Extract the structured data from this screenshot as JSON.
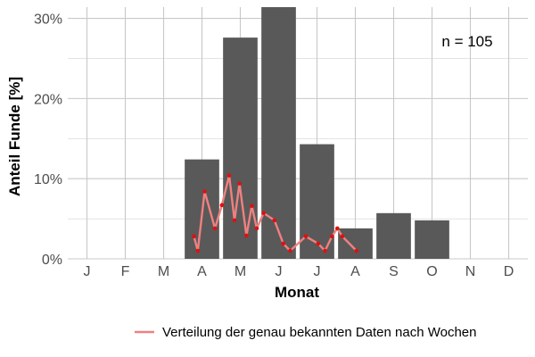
{
  "chart_data": {
    "type": "bar",
    "xlabel": "Monat",
    "ylabel": "Anteil Funde [%]",
    "categories": [
      "J",
      "F",
      "M",
      "A",
      "M",
      "J",
      "J",
      "A",
      "S",
      "O",
      "N",
      "D"
    ],
    "values": [
      0,
      0,
      0,
      12.4,
      27.6,
      31.4,
      14.3,
      3.8,
      5.7,
      4.8,
      0,
      0
    ],
    "ylim": [
      0,
      31.4
    ],
    "yticks": [
      0,
      10,
      20,
      30
    ],
    "ytick_labels": [
      "0%",
      "10%",
      "20%",
      "30%"
    ],
    "grid": true,
    "annotation": "n = 105",
    "legend_position": "bottom",
    "colors": {
      "bar": "#595959",
      "line": "#f08080",
      "point": "#dd1111",
      "grid": "#c8c8c8"
    },
    "line_series": {
      "name": "Verteilung der genau bekannten Daten nach Wochen",
      "x": [
        3.79,
        3.89,
        4.07,
        4.34,
        4.52,
        4.71,
        4.85,
        4.98,
        5.16,
        5.3,
        5.43,
        5.61,
        5.89,
        6.12,
        6.3,
        6.71,
        7.03,
        7.21,
        7.39,
        7.53,
        7.66,
        8.03
      ],
      "y": [
        2.8,
        1.0,
        8.4,
        3.8,
        6.7,
        10.4,
        4.8,
        9.4,
        2.9,
        6.6,
        3.8,
        5.7,
        4.8,
        1.9,
        1.0,
        2.8,
        1.9,
        1.0,
        2.8,
        3.8,
        2.8,
        1.0
      ]
    }
  }
}
